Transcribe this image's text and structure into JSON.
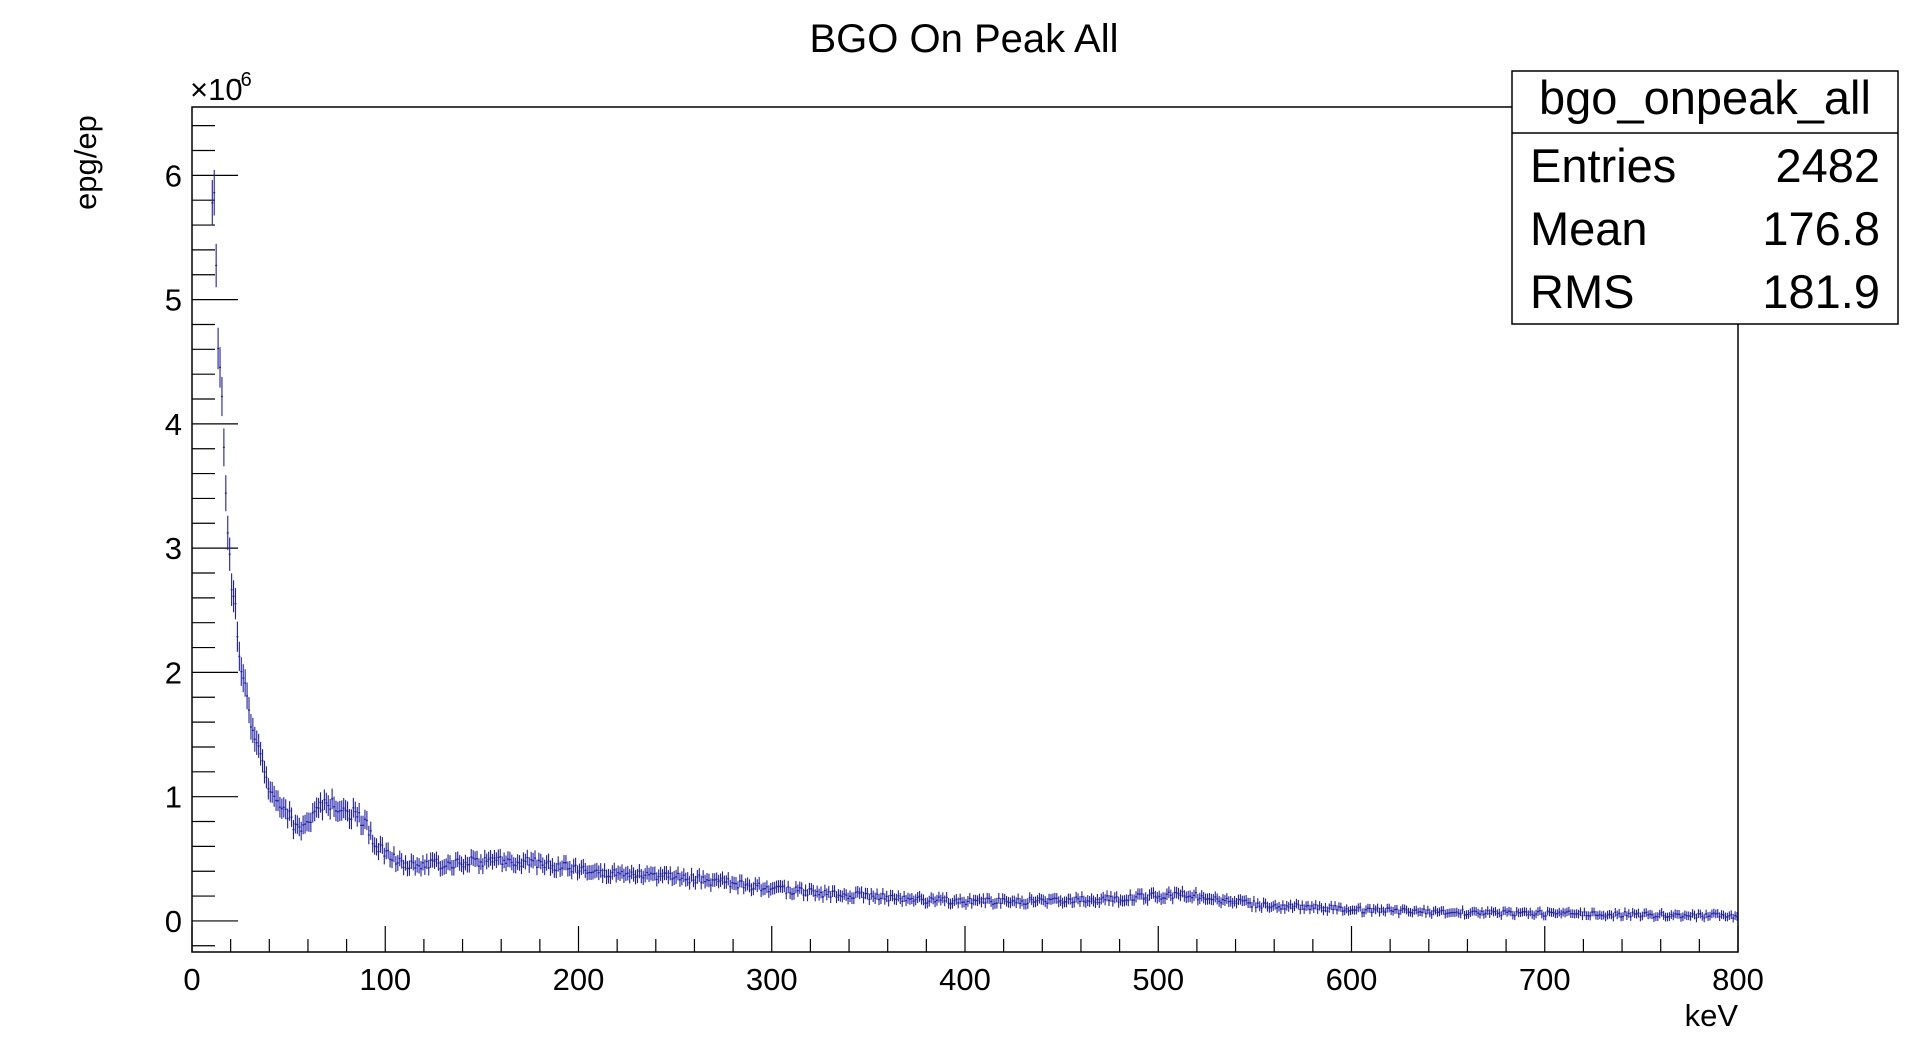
{
  "chart_data": {
    "type": "histogram",
    "title": "BGO On Peak All",
    "xlabel": "keV",
    "ylabel": "epg/ep",
    "y_exponent_label": "×10",
    "y_exponent_power": "-6",
    "xlim": [
      0,
      800
    ],
    "ylim": [
      -0.25,
      6.55
    ],
    "x_ticks": [
      0,
      100,
      200,
      300,
      400,
      500,
      600,
      700,
      800
    ],
    "y_ticks": [
      0,
      1,
      2,
      3,
      4,
      5,
      6
    ],
    "series_color": "#1f1fa8",
    "stats": {
      "name": "bgo_onpeak_all",
      "rows": [
        {
          "label": "Entries",
          "value": "2482"
        },
        {
          "label": "Mean",
          "value": "176.8"
        },
        {
          "label": "RMS",
          "value": "181.9"
        }
      ]
    },
    "envelope": {
      "x": [
        10,
        11,
        12,
        13,
        14,
        15,
        16,
        17,
        18,
        19,
        20,
        22,
        24,
        26,
        28,
        30,
        33,
        36,
        40,
        45,
        50,
        55,
        60,
        65,
        70,
        75,
        80,
        85,
        90,
        95,
        100,
        110,
        120,
        130,
        140,
        150,
        160,
        170,
        180,
        190,
        200,
        220,
        240,
        260,
        280,
        300,
        320,
        340,
        360,
        380,
        400,
        420,
        440,
        460,
        480,
        500,
        510,
        520,
        540,
        560,
        580,
        600,
        650,
        700,
        750,
        800
      ],
      "y": [
        5.6,
        6.0,
        5.6,
        4.8,
        4.6,
        4.3,
        4.0,
        3.7,
        3.2,
        3.0,
        2.8,
        2.6,
        2.2,
        2.0,
        1.8,
        1.6,
        1.45,
        1.3,
        1.0,
        0.95,
        0.85,
        0.72,
        0.78,
        0.9,
        0.95,
        0.92,
        0.88,
        0.85,
        0.78,
        0.6,
        0.55,
        0.45,
        0.45,
        0.46,
        0.47,
        0.48,
        0.48,
        0.47,
        0.47,
        0.44,
        0.42,
        0.38,
        0.36,
        0.34,
        0.3,
        0.26,
        0.23,
        0.21,
        0.19,
        0.17,
        0.16,
        0.16,
        0.16,
        0.17,
        0.18,
        0.2,
        0.21,
        0.2,
        0.15,
        0.12,
        0.11,
        0.09,
        0.07,
        0.06,
        0.05,
        0.04
      ]
    },
    "bin_width": 1,
    "noise_seed": 2482
  }
}
